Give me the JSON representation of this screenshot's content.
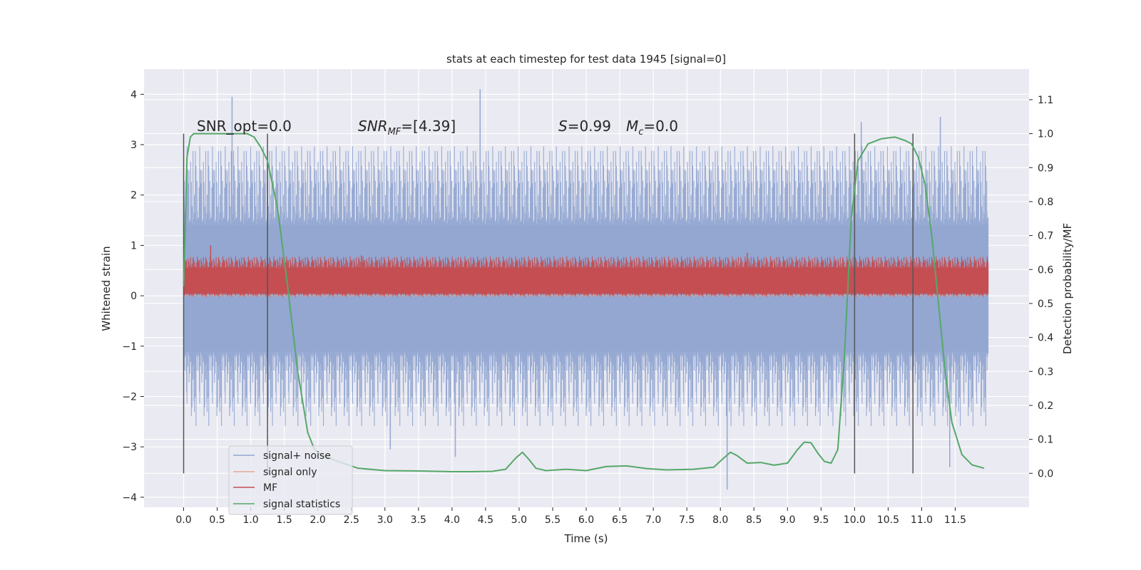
{
  "chart_data": {
    "type": "line",
    "title": "stats at each timestep for test data 1945 [signal=0]",
    "xlabel": "Time (s)",
    "ylabel": "Whitened strain",
    "y2label": "Detection probability/MF",
    "xlim": [
      -0.59,
      12.6
    ],
    "ylim": [
      -4.2,
      4.5
    ],
    "y2lim": [
      -0.1,
      1.19
    ],
    "x_ticks": [
      "0.0",
      "0.5",
      "1.0",
      "1.5",
      "2.0",
      "2.5",
      "3.0",
      "3.5",
      "4.0",
      "4.5",
      "5.0",
      "5.5",
      "6.0",
      "6.5",
      "7.0",
      "7.5",
      "8.0",
      "8.5",
      "9.0",
      "9.5",
      "10.0",
      "10.5",
      "11.0",
      "11.5"
    ],
    "y_ticks": [
      "4",
      "3",
      "2",
      "1",
      "0",
      "−1",
      "−2",
      "−3",
      "−4"
    ],
    "y_tick_values": [
      4,
      3,
      2,
      1,
      0,
      -1,
      -2,
      -3,
      -4
    ],
    "y2_ticks": [
      "1.1",
      "1.0",
      "0.9",
      "0.8",
      "0.7",
      "0.6",
      "0.5",
      "0.4",
      "0.3",
      "0.2",
      "0.1",
      "0.0"
    ],
    "y2_tick_values": [
      1.1,
      1.0,
      0.9,
      0.8,
      0.7,
      0.6,
      0.5,
      0.4,
      0.3,
      0.2,
      0.1,
      0.0
    ],
    "grid": true,
    "legend_position": "bottom-left",
    "annotations": {
      "snr_opt": "SNR_opt=0.0",
      "snr_mf_name": "SNR",
      "snr_mf_sub": "MF",
      "snr_mf_value": "=[4.39]",
      "stat_name": "S",
      "stat_value": "=0.99",
      "mc_name": "M",
      "mc_sub": "c",
      "mc_value": "=0.0"
    },
    "vertical_markers": [
      0.0,
      1.25,
      10.0,
      10.87
    ],
    "series": [
      {
        "name": "signal+ noise",
        "axis": "left",
        "color": "#92a6d1",
        "envelope": {
          "x_range": [
            0.0,
            11.99
          ],
          "typical_upper": 1.4,
          "typical_lower": -1.1,
          "peak_upper": [
            [
              0.72,
              3.95
            ],
            [
              4.42,
              4.1
            ],
            [
              11.28,
              3.55
            ],
            [
              10.1,
              3.45
            ]
          ],
          "peak_lower": [
            [
              4.05,
              -3.2
            ],
            [
              8.1,
              -3.85
            ],
            [
              11.42,
              -3.4
            ],
            [
              3.08,
              -3.05
            ]
          ]
        }
      },
      {
        "name": "signal only",
        "axis": "left",
        "color": "#e8a890",
        "values_x": [
          0.0,
          11.99
        ],
        "values_y": [
          0.0,
          0.0
        ]
      },
      {
        "name": "MF",
        "axis": "left",
        "color": "#c44e52",
        "envelope": {
          "x_range": [
            0.0,
            11.99
          ],
          "typical_upper": 0.55,
          "typical_lower": 0.05,
          "peak_upper": [
            [
              0.4,
              1.0
            ],
            [
              2.65,
              0.8
            ],
            [
              8.4,
              0.85
            ]
          ]
        }
      },
      {
        "name": "signal statistics",
        "axis": "right",
        "color": "#55a868",
        "values_x": [
          0.0,
          0.05,
          0.1,
          0.15,
          0.2,
          0.3,
          0.5,
          0.75,
          0.95,
          1.05,
          1.15,
          1.25,
          1.4,
          1.55,
          1.7,
          1.85,
          1.95,
          2.05,
          2.3,
          2.6,
          3.0,
          3.5,
          4.0,
          4.3,
          4.6,
          4.8,
          4.95,
          5.05,
          5.15,
          5.25,
          5.4,
          5.7,
          6.0,
          6.3,
          6.6,
          6.9,
          7.2,
          7.6,
          7.9,
          8.05,
          8.15,
          8.25,
          8.4,
          8.6,
          8.8,
          9.0,
          9.15,
          9.25,
          9.35,
          9.45,
          9.55,
          9.65,
          9.75,
          9.85,
          9.95,
          10.05,
          10.2,
          10.4,
          10.6,
          10.75,
          10.85,
          10.95,
          11.05,
          11.15,
          11.25,
          11.35,
          11.45,
          11.6,
          11.75,
          11.93
        ],
        "values_y": [
          0.55,
          0.93,
          0.99,
          1.0,
          1.0,
          1.0,
          1.0,
          1.0,
          1.0,
          0.99,
          0.96,
          0.92,
          0.78,
          0.55,
          0.3,
          0.12,
          0.07,
          0.055,
          0.035,
          0.015,
          0.008,
          0.007,
          0.005,
          0.005,
          0.006,
          0.012,
          0.045,
          0.062,
          0.04,
          0.015,
          0.008,
          0.012,
          0.008,
          0.02,
          0.022,
          0.014,
          0.01,
          0.012,
          0.018,
          0.045,
          0.062,
          0.052,
          0.03,
          0.032,
          0.024,
          0.03,
          0.07,
          0.092,
          0.09,
          0.06,
          0.035,
          0.03,
          0.07,
          0.35,
          0.75,
          0.92,
          0.97,
          0.985,
          0.99,
          0.98,
          0.97,
          0.93,
          0.85,
          0.7,
          0.5,
          0.3,
          0.15,
          0.055,
          0.025,
          0.015
        ]
      }
    ]
  }
}
